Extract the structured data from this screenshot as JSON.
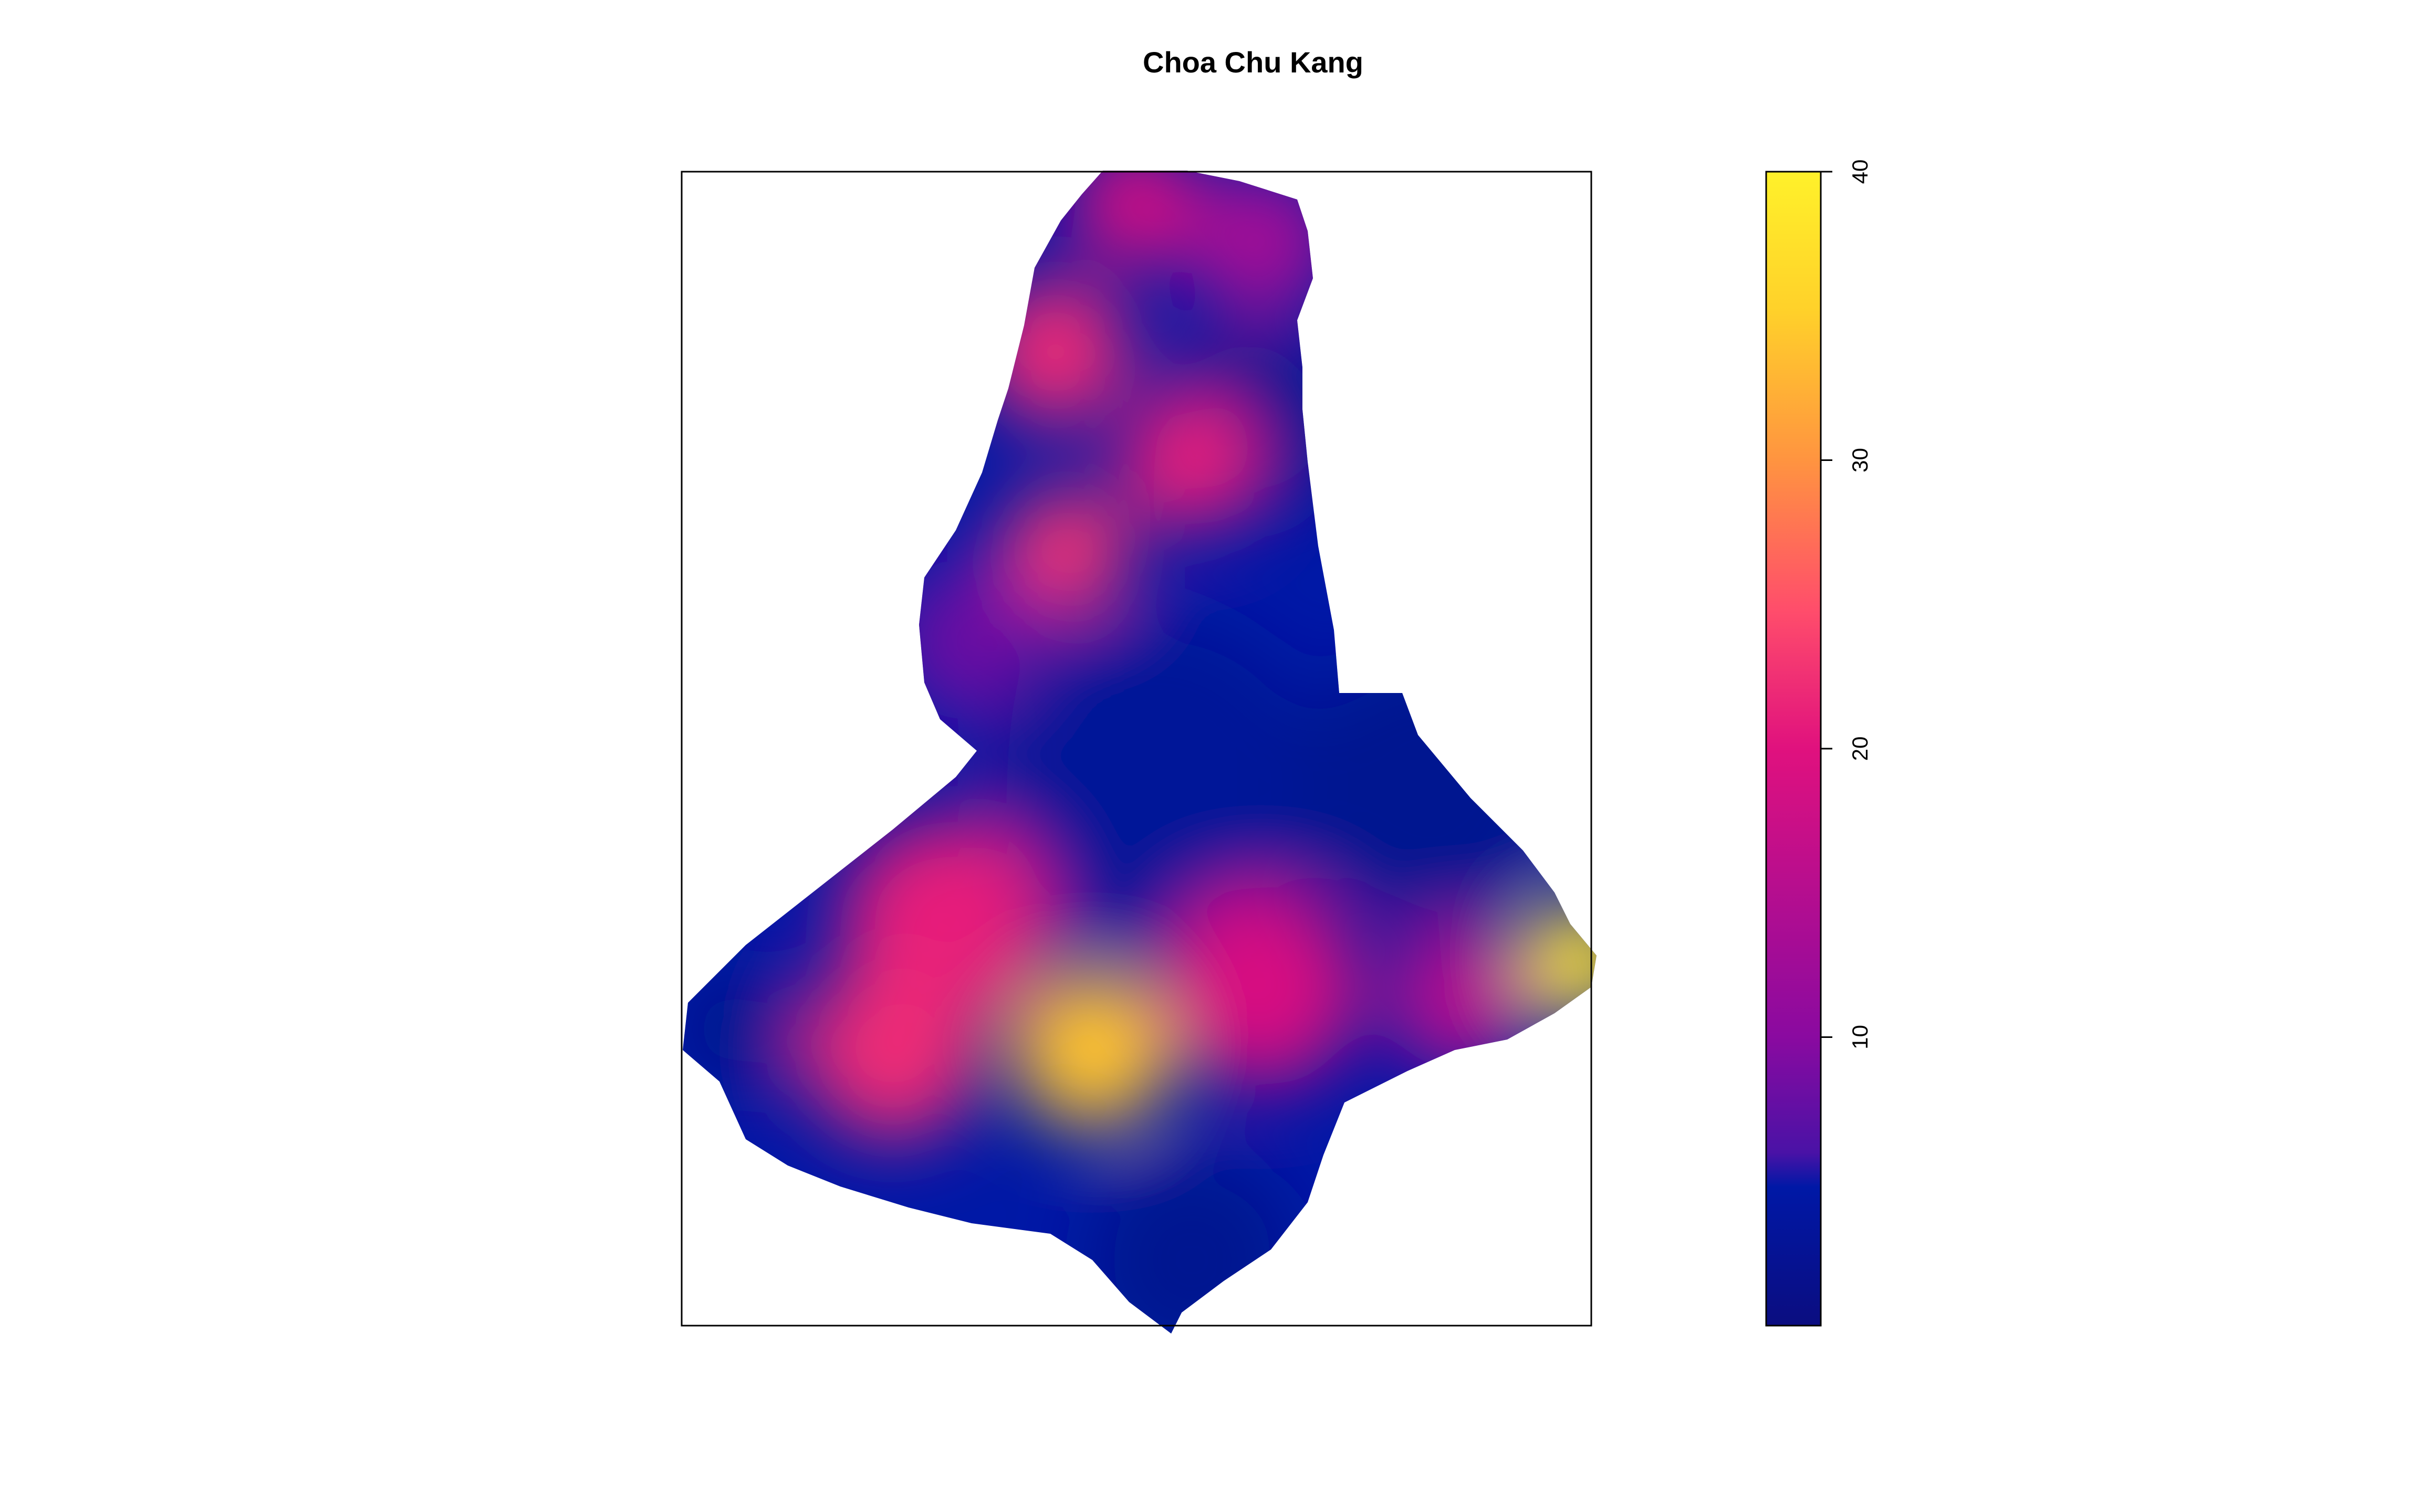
{
  "chart_data": {
    "type": "heatmap",
    "title": "Choa Chu Kang",
    "xlabel": "",
    "ylabel": "",
    "axes_shown": false,
    "grid": false,
    "colorbar": {
      "position": "right",
      "range": [
        0,
        40
      ],
      "ticks": [
        10,
        20,
        30,
        40
      ],
      "tick_labels": [
        "10",
        "20",
        "30",
        "40"
      ],
      "colormap": "plasma",
      "colors": [
        "#0b0d80",
        "#0018a6",
        "#7a0fa0",
        "#e0117e",
        "#ff4d6b",
        "#ff9440",
        "#ffd12a",
        "#fff12a"
      ]
    },
    "hotspots": [
      {
        "region": "north tip",
        "value": 19
      },
      {
        "region": "north-west upper",
        "value": 22
      },
      {
        "region": "north-east upper",
        "value": 13
      },
      {
        "region": "east upper channel",
        "value": 2
      },
      {
        "region": "centre-north",
        "value": 21
      },
      {
        "region": "centre-north-west",
        "value": 23
      },
      {
        "region": "west lobe",
        "value": 8
      },
      {
        "region": "central band",
        "value": 3
      },
      {
        "region": "south-west",
        "value": 21
      },
      {
        "region": "south-west lower",
        "value": 22
      },
      {
        "region": "south centre",
        "value": 34
      },
      {
        "region": "south centre-east",
        "value": 19
      },
      {
        "region": "south-east",
        "value": 15
      },
      {
        "region": "east tip",
        "value": 38
      },
      {
        "region": "west tip",
        "value": 2
      },
      {
        "region": "south tip",
        "value": 2
      },
      {
        "region": "north-east",
        "value": 2
      }
    ]
  }
}
